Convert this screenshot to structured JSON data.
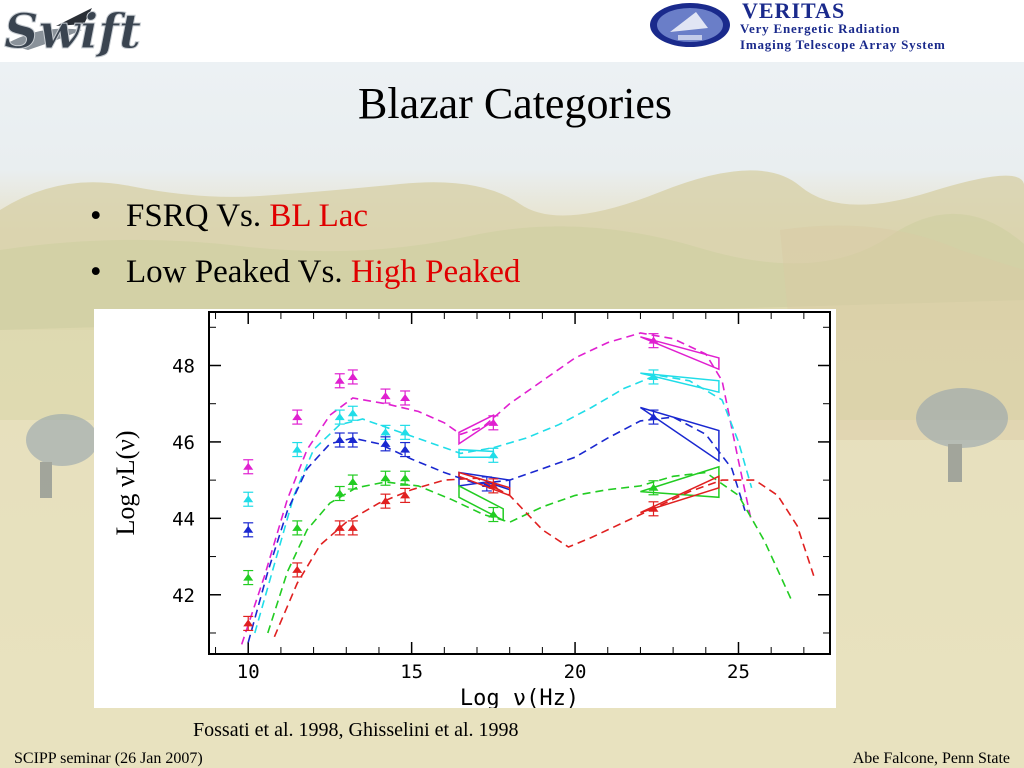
{
  "logos": {
    "left_text": "Swift",
    "right_name": "VERITAS",
    "right_tagline_1": "Very Energetic Radiation",
    "right_tagline_2": "Imaging Telescope Array System"
  },
  "slide": {
    "title": "Blazar Categories",
    "bullets": [
      {
        "bullet": "•",
        "text": "FSRQ Vs. ",
        "highlight": "BL Lac"
      },
      {
        "bullet": "•",
        "text": "Low Peaked Vs. ",
        "highlight": "High Peaked"
      }
    ],
    "caption": "Fossati et al. 1998, Ghisselini et al. 1998",
    "footer_left": "SCIPP seminar (26 Jan 2007)",
    "footer_right": "Abe Falcone, Penn State"
  },
  "colors": {
    "highlight": "#e00000",
    "magenta": "#e020d0",
    "cyan": "#20dde8",
    "blue": "#1a28d0",
    "green": "#22cc22",
    "red": "#e02020"
  },
  "chart_data": {
    "type": "scatter",
    "xlabel": "Log ν(Hz)",
    "ylabel": "Log νL(ν)",
    "xlim": [
      8.8,
      27.8
    ],
    "ylim": [
      40.45,
      49.4
    ],
    "xticks": [
      10,
      15,
      20,
      25
    ],
    "yticks": [
      42,
      44,
      46,
      48
    ],
    "grid": false,
    "series": [
      {
        "color": "magenta",
        "points": [
          [
            10.0,
            45.35
          ],
          [
            11.5,
            46.65
          ],
          [
            12.8,
            47.6
          ],
          [
            13.2,
            47.7
          ],
          [
            14.2,
            47.2
          ],
          [
            14.8,
            47.15
          ],
          [
            17.5,
            46.5
          ],
          [
            22.4,
            48.65
          ]
        ],
        "curve": [
          [
            9.8,
            40.7
          ],
          [
            10.5,
            42.5
          ],
          [
            11.2,
            44.5
          ],
          [
            11.8,
            45.8
          ],
          [
            12.5,
            46.7
          ],
          [
            13.2,
            47.15
          ],
          [
            14.2,
            47.0
          ],
          [
            15.2,
            46.8
          ],
          [
            16.0,
            46.5
          ],
          [
            16.5,
            46.2
          ],
          [
            17.2,
            46.4
          ],
          [
            18.0,
            47.0
          ],
          [
            19.0,
            47.6
          ],
          [
            20.0,
            48.2
          ],
          [
            21.0,
            48.6
          ],
          [
            22.0,
            48.85
          ],
          [
            23.0,
            48.7
          ],
          [
            24.0,
            48.3
          ],
          [
            24.5,
            47.6
          ],
          [
            25.0,
            45.5
          ],
          [
            25.4,
            43.9
          ]
        ],
        "bowties": [
          [
            [
              16.45,
              45.95
            ],
            [
              17.5,
              46.55
            ],
            [
              17.5,
              46.7
            ],
            [
              16.45,
              46.25
            ]
          ],
          [
            [
              22.0,
              48.75
            ],
            [
              24.4,
              48.2
            ],
            [
              24.4,
              47.9
            ],
            [
              22.0,
              48.75
            ]
          ]
        ]
      },
      {
        "color": "cyan",
        "points": [
          [
            10.0,
            44.5
          ],
          [
            11.5,
            45.8
          ],
          [
            12.8,
            46.65
          ],
          [
            13.2,
            46.75
          ],
          [
            14.2,
            46.25
          ],
          [
            14.8,
            46.25
          ],
          [
            17.5,
            45.65
          ],
          [
            22.4,
            47.7
          ]
        ],
        "curve": [
          [
            10.2,
            41.0
          ],
          [
            10.8,
            42.8
          ],
          [
            11.4,
            44.6
          ],
          [
            12.0,
            45.8
          ],
          [
            12.8,
            46.45
          ],
          [
            13.5,
            46.6
          ],
          [
            14.5,
            46.3
          ],
          [
            15.5,
            46.0
          ],
          [
            16.5,
            45.7
          ],
          [
            17.5,
            45.85
          ],
          [
            18.5,
            46.1
          ],
          [
            19.5,
            46.45
          ],
          [
            20.5,
            46.9
          ],
          [
            21.5,
            47.4
          ],
          [
            22.5,
            47.75
          ],
          [
            23.5,
            47.6
          ],
          [
            24.5,
            47.1
          ],
          [
            25.0,
            46.0
          ],
          [
            25.4,
            44.8
          ]
        ],
        "bowties": [
          [
            [
              16.45,
              45.6
            ],
            [
              17.5,
              45.6
            ],
            [
              17.5,
              45.75
            ],
            [
              16.45,
              45.8
            ]
          ],
          [
            [
              22.0,
              47.8
            ],
            [
              24.4,
              47.3
            ],
            [
              24.4,
              47.6
            ],
            [
              22.0,
              47.8
            ]
          ]
        ]
      },
      {
        "color": "blue",
        "points": [
          [
            10.0,
            43.7
          ],
          [
            12.8,
            46.05
          ],
          [
            13.2,
            46.05
          ],
          [
            14.2,
            45.95
          ],
          [
            14.8,
            45.8
          ],
          [
            17.3,
            44.9
          ],
          [
            22.4,
            46.65
          ]
        ],
        "curve": [
          [
            10.0,
            40.75
          ],
          [
            10.6,
            42.6
          ],
          [
            11.2,
            44.2
          ],
          [
            11.8,
            45.3
          ],
          [
            12.5,
            45.95
          ],
          [
            13.2,
            46.1
          ],
          [
            14.0,
            45.95
          ],
          [
            15.0,
            45.55
          ],
          [
            16.0,
            45.2
          ],
          [
            17.0,
            44.9
          ],
          [
            18.0,
            45.0
          ],
          [
            19.0,
            45.3
          ],
          [
            20.0,
            45.6
          ],
          [
            21.0,
            46.1
          ],
          [
            22.0,
            46.55
          ],
          [
            23.0,
            46.65
          ],
          [
            24.0,
            46.2
          ],
          [
            24.8,
            45.3
          ],
          [
            25.2,
            44.2
          ]
        ],
        "bowties": [
          [
            [
              16.45,
              44.85
            ],
            [
              17.3,
              44.95
            ],
            [
              18.0,
              44.75
            ],
            [
              18.0,
              45.0
            ],
            [
              16.45,
              45.2
            ]
          ],
          [
            [
              22.0,
              46.9
            ],
            [
              24.4,
              45.5
            ],
            [
              24.4,
              46.3
            ],
            [
              22.0,
              46.9
            ]
          ]
        ]
      },
      {
        "color": "green",
        "points": [
          [
            10.0,
            42.45
          ],
          [
            11.5,
            43.75
          ],
          [
            12.8,
            44.65
          ],
          [
            13.2,
            44.95
          ],
          [
            14.2,
            45.05
          ],
          [
            14.8,
            45.05
          ],
          [
            17.5,
            44.1
          ],
          [
            22.4,
            44.8
          ]
        ],
        "curve": [
          [
            10.6,
            41.0
          ],
          [
            11.2,
            42.6
          ],
          [
            11.8,
            43.7
          ],
          [
            12.5,
            44.4
          ],
          [
            13.3,
            44.8
          ],
          [
            14.2,
            44.95
          ],
          [
            15.2,
            44.85
          ],
          [
            16.2,
            44.5
          ],
          [
            17.2,
            44.1
          ],
          [
            18.0,
            43.9
          ],
          [
            19.0,
            44.3
          ],
          [
            20.0,
            44.6
          ],
          [
            21.0,
            44.75
          ],
          [
            22.0,
            44.85
          ],
          [
            23.0,
            45.1
          ],
          [
            24.0,
            45.2
          ],
          [
            25.0,
            44.6
          ],
          [
            25.8,
            43.4
          ],
          [
            26.6,
            41.9
          ]
        ],
        "bowties": [
          [
            [
              16.45,
              44.55
            ],
            [
              17.8,
              43.95
            ],
            [
              17.8,
              44.25
            ],
            [
              16.45,
              44.85
            ]
          ],
          [
            [
              22.0,
              44.7
            ],
            [
              24.4,
              45.35
            ],
            [
              24.4,
              44.55
            ],
            [
              22.0,
              44.7
            ]
          ]
        ]
      },
      {
        "color": "red",
        "points": [
          [
            10.0,
            41.25
          ],
          [
            11.5,
            42.65
          ],
          [
            12.8,
            43.75
          ],
          [
            13.2,
            43.75
          ],
          [
            14.2,
            44.45
          ],
          [
            14.8,
            44.6
          ],
          [
            17.5,
            44.85
          ],
          [
            22.4,
            44.25
          ]
        ],
        "curve": [
          [
            10.8,
            40.9
          ],
          [
            11.5,
            42.3
          ],
          [
            12.2,
            43.3
          ],
          [
            13.0,
            43.9
          ],
          [
            14.0,
            44.4
          ],
          [
            15.0,
            44.75
          ],
          [
            16.0,
            45.0
          ],
          [
            17.0,
            45.05
          ],
          [
            18.0,
            44.6
          ],
          [
            19.0,
            43.7
          ],
          [
            19.8,
            43.25
          ],
          [
            20.5,
            43.5
          ],
          [
            21.5,
            43.9
          ],
          [
            22.5,
            44.3
          ],
          [
            23.5,
            44.7
          ],
          [
            24.5,
            45.0
          ],
          [
            25.5,
            45.0
          ],
          [
            26.2,
            44.6
          ],
          [
            26.8,
            43.8
          ],
          [
            27.3,
            42.5
          ]
        ],
        "bowties": [
          [
            [
              16.45,
              45.1
            ],
            [
              18.0,
              44.6
            ],
            [
              18.0,
              44.8
            ],
            [
              16.45,
              45.2
            ]
          ],
          [
            [
              22.0,
              44.15
            ],
            [
              24.4,
              45.1
            ],
            [
              24.4,
              44.8
            ],
            [
              22.0,
              44.15
            ]
          ]
        ]
      }
    ]
  }
}
